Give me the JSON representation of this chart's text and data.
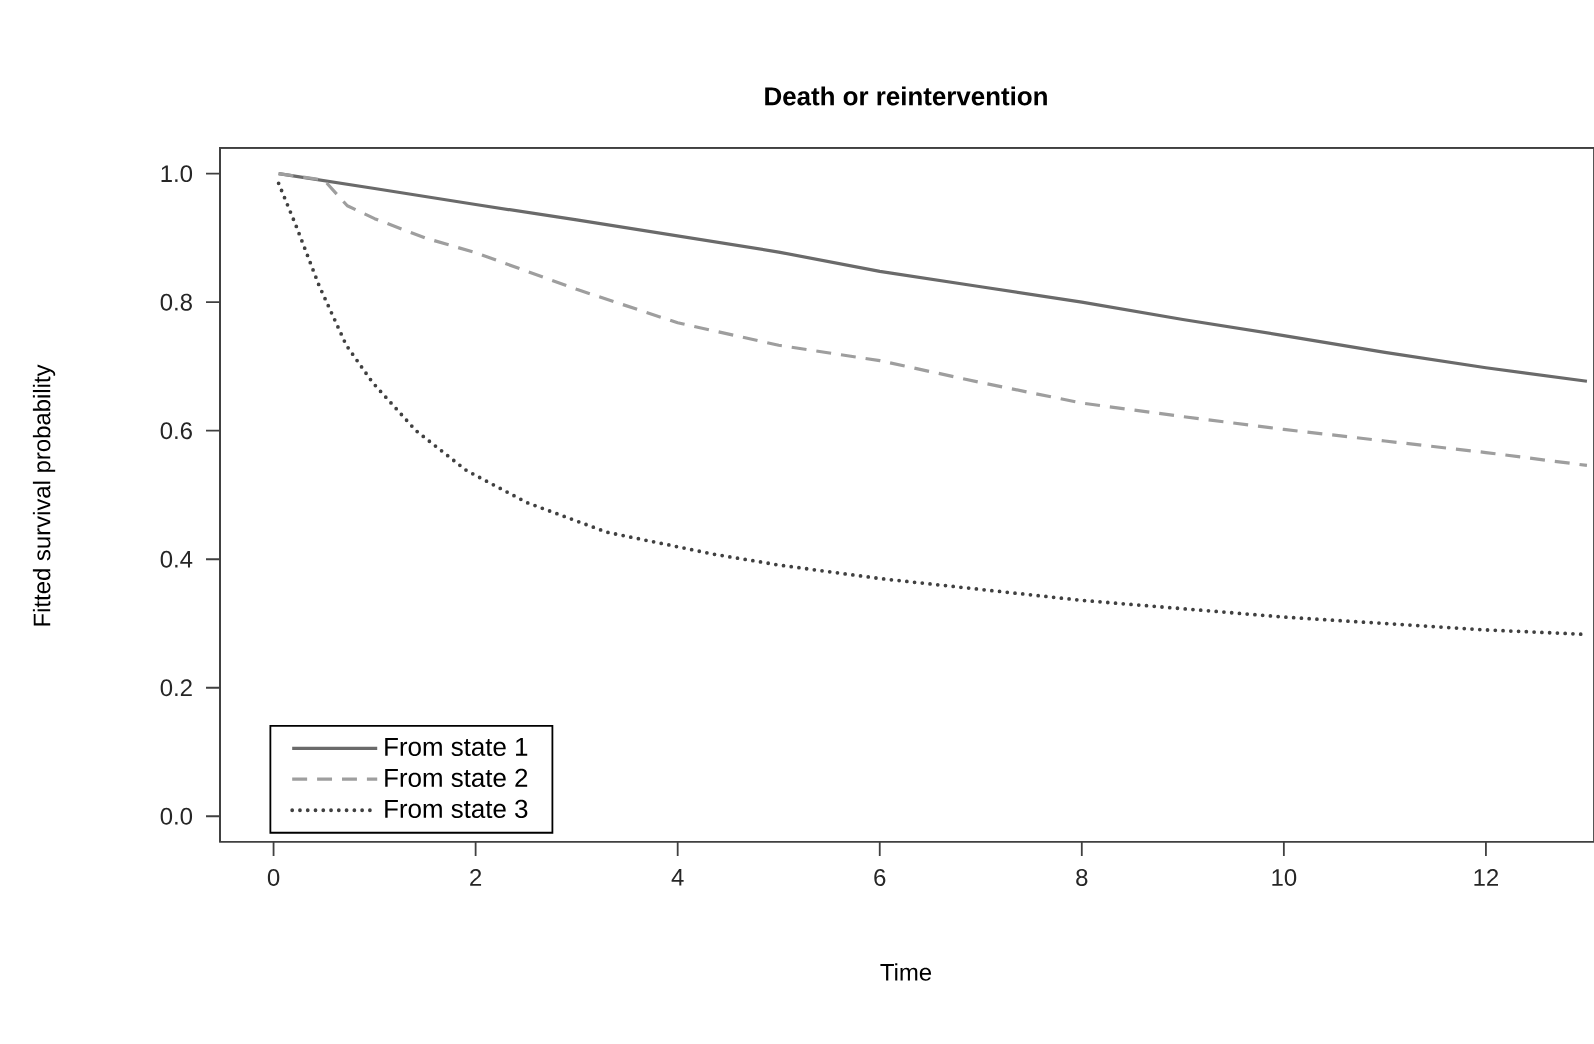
{
  "chart_data": {
    "type": "line",
    "title": "Death or reintervention",
    "xlabel": "Time",
    "ylabel": "Fitted survival probability",
    "xlim": [
      -0.53,
      13.07
    ],
    "ylim": [
      -0.04,
      1.04
    ],
    "xticks": [
      0,
      2,
      4,
      6,
      8,
      10,
      12
    ],
    "yticks": [
      {
        "value": 0,
        "label": "0.0"
      },
      {
        "value": 0.2,
        "label": "0.2"
      },
      {
        "value": 0.4,
        "label": "0.4"
      },
      {
        "value": 0.6,
        "label": "0.6"
      },
      {
        "value": 0.8,
        "label": "0.8"
      },
      {
        "value": 1,
        "label": "1.0"
      }
    ],
    "legend": "bottom left",
    "grid": false,
    "series": [
      {
        "name": "From state 1",
        "color": "#6a6a6a",
        "line_style": "solid",
        "x": [
          0.05,
          1,
          2,
          3,
          4,
          5,
          6,
          7,
          8,
          9,
          10,
          11,
          12,
          13
        ],
        "values": [
          1.0,
          0.977,
          0.952,
          0.928,
          0.903,
          0.878,
          0.848,
          0.824,
          0.8,
          0.773,
          0.748,
          0.722,
          0.698,
          0.677
        ]
      },
      {
        "name": "From state 2",
        "color": "#9e9e9e",
        "line_style": "dashed",
        "x": [
          0.05,
          0.5,
          0.73,
          1,
          1.5,
          2,
          3,
          4,
          5,
          6,
          7,
          8,
          9,
          10,
          11,
          12,
          13
        ],
        "values": [
          1.0,
          0.99,
          0.95,
          0.93,
          0.9,
          0.877,
          0.82,
          0.768,
          0.733,
          0.709,
          0.675,
          0.643,
          0.622,
          0.602,
          0.584,
          0.566,
          0.546
        ]
      },
      {
        "name": "From state 3",
        "color": "#404040",
        "line_style": "dotted",
        "x": [
          0.05,
          0.22,
          0.45,
          0.72,
          0.98,
          1.41,
          1.91,
          2.51,
          3.3,
          4.35,
          5,
          6,
          8,
          10,
          12,
          13
        ],
        "values": [
          0.985,
          0.92,
          0.826,
          0.733,
          0.675,
          0.6,
          0.538,
          0.488,
          0.442,
          0.408,
          0.391,
          0.37,
          0.336,
          0.31,
          0.29,
          0.283
        ]
      }
    ]
  }
}
